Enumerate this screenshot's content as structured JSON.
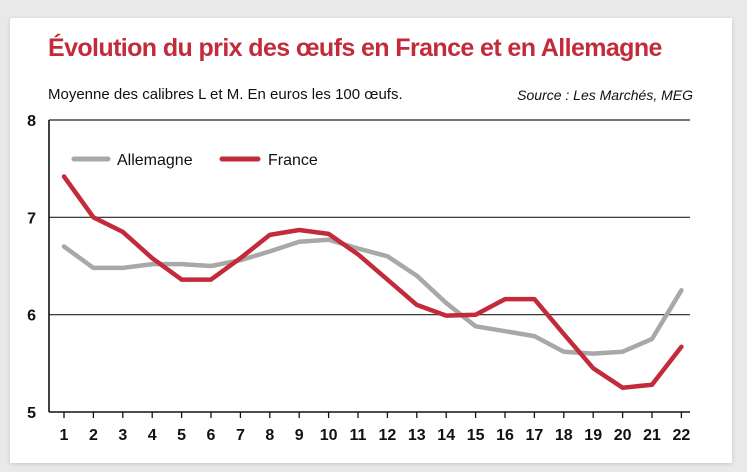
{
  "chart_data": {
    "type": "line",
    "title": "Évolution du prix des œufs en France et en Allemagne",
    "subtitle": "Moyenne des calibres L et M. En euros les 100 œufs.",
    "source": "Source : Les Marchés, MEG",
    "x": [
      1,
      2,
      3,
      4,
      5,
      6,
      7,
      8,
      9,
      10,
      11,
      12,
      13,
      14,
      15,
      16,
      17,
      18,
      19,
      20,
      21,
      22
    ],
    "x_tick_labels": [
      "1",
      "2",
      "3",
      "4",
      "5",
      "6",
      "7",
      "8",
      "9",
      "10",
      "11",
      "12",
      "13",
      "14",
      "15",
      "16",
      "17",
      "18",
      "19",
      "20",
      "21",
      "22"
    ],
    "y_tick_labels": [
      "5",
      "6",
      "7",
      "8"
    ],
    "ylim": [
      5,
      8
    ],
    "grid": true,
    "legend_position": "top-left",
    "series": [
      {
        "name": "Allemagne",
        "color": "#a8a8a8",
        "values": [
          6.7,
          6.48,
          6.48,
          6.52,
          6.52,
          6.5,
          6.56,
          6.65,
          6.75,
          6.77,
          6.68,
          6.6,
          6.4,
          6.12,
          5.88,
          5.83,
          5.78,
          5.62,
          5.6,
          5.62,
          5.75,
          6.25
        ]
      },
      {
        "name": "France",
        "color": "#c32a3a",
        "values": [
          7.42,
          7.0,
          6.85,
          6.58,
          6.36,
          6.36,
          6.58,
          6.82,
          6.87,
          6.83,
          6.62,
          6.36,
          6.1,
          5.99,
          6.0,
          6.16,
          6.16,
          5.8,
          5.45,
          5.25,
          5.28,
          5.67
        ]
      }
    ]
  }
}
